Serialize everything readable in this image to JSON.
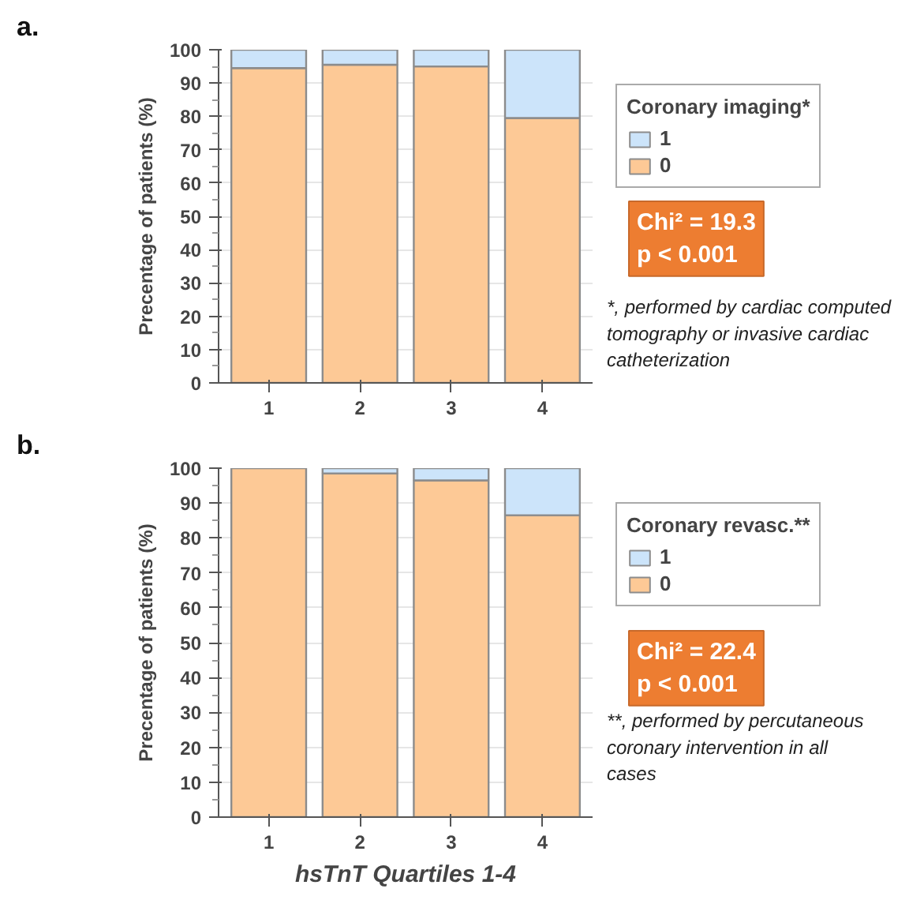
{
  "chart_data": [
    {
      "type": "bar",
      "title": "a.",
      "ylabel": "Precentage of patients (%)",
      "legend_title": "Coronary imaging*",
      "categories": [
        "1",
        "2",
        "3",
        "4"
      ],
      "stacked": true,
      "ylim": [
        0,
        100
      ],
      "yticks": [
        0,
        10,
        20,
        30,
        40,
        50,
        60,
        70,
        80,
        90,
        100
      ],
      "grid": "y",
      "legend": "right",
      "series": [
        {
          "name": "0",
          "color": "#fdc996",
          "values": [
            94.5,
            95.5,
            95,
            79.5
          ]
        },
        {
          "name": "1",
          "color": "#cce4fa",
          "values": [
            5.5,
            4.5,
            5,
            20.5
          ]
        }
      ],
      "annotations": [
        "Chi² = 19.3\np < 0.001",
        "*, performed by cardiac computed tomography or invasive cardiac catheterization"
      ]
    },
    {
      "type": "bar",
      "title": "b.",
      "ylabel": "Precentage of patients (%)",
      "xlabel": "hsTnT Quartiles 1-4",
      "legend_title": "Coronary revasc.**",
      "categories": [
        "1",
        "2",
        "3",
        "4"
      ],
      "stacked": true,
      "ylim": [
        0,
        100
      ],
      "yticks": [
        0,
        10,
        20,
        30,
        40,
        50,
        60,
        70,
        80,
        90,
        100
      ],
      "grid": "y",
      "legend": "right",
      "series": [
        {
          "name": "0",
          "color": "#fdc996",
          "values": [
            100,
            98.5,
            96.5,
            86.5
          ]
        },
        {
          "name": "1",
          "color": "#cce4fa",
          "values": [
            null,
            1.5,
            3.5,
            13.5
          ]
        }
      ],
      "annotations": [
        "Chi² = 22.4\np < 0.001",
        "**, performed by percutaneous coronary intervention in all cases"
      ]
    }
  ]
}
